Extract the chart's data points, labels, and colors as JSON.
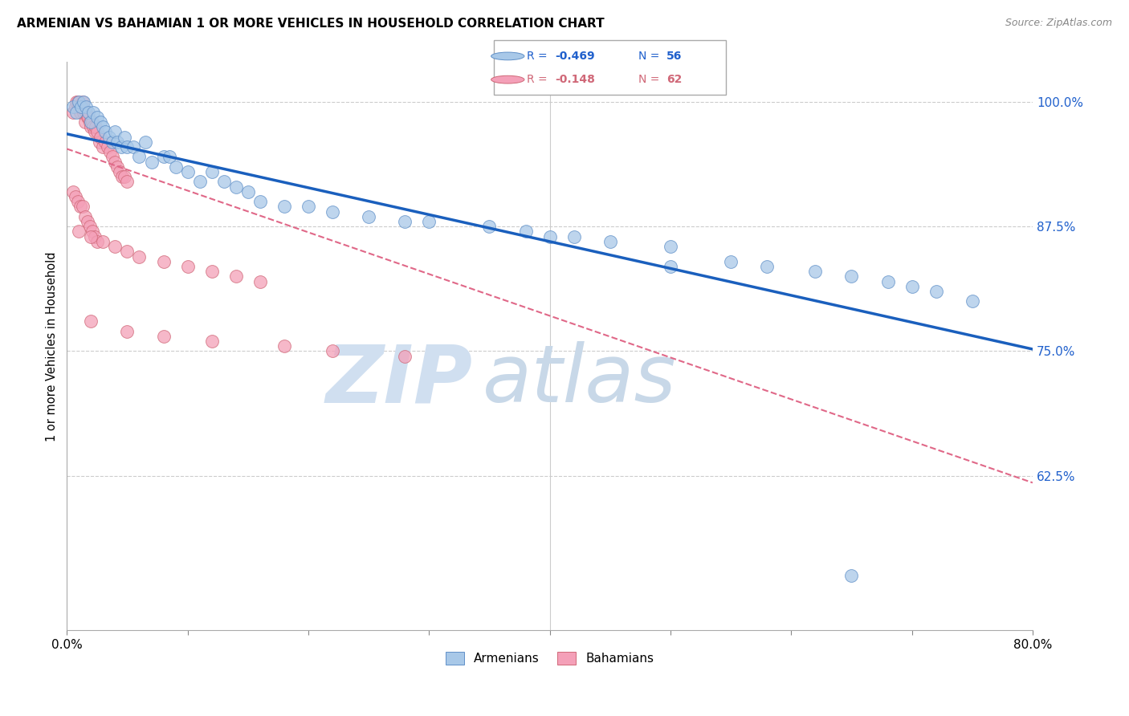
{
  "title": "ARMENIAN VS BAHAMIAN 1 OR MORE VEHICLES IN HOUSEHOLD CORRELATION CHART",
  "source": "Source: ZipAtlas.com",
  "ylabel": "1 or more Vehicles in Household",
  "ytick_labels": [
    "100.0%",
    "87.5%",
    "75.0%",
    "62.5%"
  ],
  "ytick_values": [
    1.0,
    0.875,
    0.75,
    0.625
  ],
  "xlim": [
    0.0,
    0.8
  ],
  "ylim": [
    0.47,
    1.04
  ],
  "legend_armenians": "Armenians",
  "legend_bahamians": "Bahamians",
  "legend_r_armenian": "-0.469",
  "legend_n_armenian": "56",
  "legend_r_bahamian": "-0.148",
  "legend_n_bahamian": "62",
  "color_armenian": "#a8c8e8",
  "color_bahamian": "#f4a0b8",
  "color_trendline_armenian": "#1a5fbd",
  "color_trendline_bahamian": "#e06888",
  "watermark_zip": "ZIP",
  "watermark_atlas": "atlas",
  "watermark_color": "#c8d8e8",
  "trendline_armenian_x0": 0.0,
  "trendline_armenian_y0": 0.968,
  "trendline_armenian_x1": 0.8,
  "trendline_armenian_y1": 0.752,
  "trendline_bahamian_x0": 0.0,
  "trendline_bahamian_y0": 0.953,
  "trendline_bahamian_x1": 0.8,
  "trendline_bahamian_y1": 0.618,
  "armenian_x": [
    0.005,
    0.008,
    0.01,
    0.012,
    0.014,
    0.016,
    0.018,
    0.02,
    0.022,
    0.025,
    0.028,
    0.03,
    0.032,
    0.035,
    0.038,
    0.04,
    0.042,
    0.045,
    0.048,
    0.05,
    0.055,
    0.06,
    0.065,
    0.07,
    0.08,
    0.085,
    0.09,
    0.1,
    0.11,
    0.12,
    0.13,
    0.14,
    0.15,
    0.16,
    0.18,
    0.2,
    0.22,
    0.25,
    0.28,
    0.3,
    0.35,
    0.38,
    0.4,
    0.42,
    0.45,
    0.5,
    0.55,
    0.58,
    0.62,
    0.65,
    0.68,
    0.7,
    0.72,
    0.75,
    0.5,
    0.65
  ],
  "armenian_y": [
    0.995,
    0.99,
    1.0,
    0.995,
    1.0,
    0.995,
    0.99,
    0.98,
    0.99,
    0.985,
    0.98,
    0.975,
    0.97,
    0.965,
    0.96,
    0.97,
    0.96,
    0.955,
    0.965,
    0.955,
    0.955,
    0.945,
    0.96,
    0.94,
    0.945,
    0.945,
    0.935,
    0.93,
    0.92,
    0.93,
    0.92,
    0.915,
    0.91,
    0.9,
    0.895,
    0.895,
    0.89,
    0.885,
    0.88,
    0.88,
    0.875,
    0.87,
    0.865,
    0.865,
    0.86,
    0.855,
    0.84,
    0.835,
    0.83,
    0.825,
    0.82,
    0.815,
    0.81,
    0.8,
    0.835,
    0.525
  ],
  "bahamian_x": [
    0.005,
    0.007,
    0.008,
    0.009,
    0.01,
    0.011,
    0.012,
    0.013,
    0.014,
    0.015,
    0.016,
    0.017,
    0.018,
    0.019,
    0.02,
    0.021,
    0.022,
    0.023,
    0.024,
    0.025,
    0.027,
    0.028,
    0.03,
    0.032,
    0.034,
    0.036,
    0.038,
    0.04,
    0.042,
    0.044,
    0.046,
    0.048,
    0.05,
    0.005,
    0.007,
    0.009,
    0.011,
    0.013,
    0.015,
    0.017,
    0.019,
    0.021,
    0.023,
    0.025,
    0.01,
    0.02,
    0.03,
    0.04,
    0.05,
    0.06,
    0.08,
    0.1,
    0.12,
    0.14,
    0.16,
    0.02,
    0.05,
    0.08,
    0.12,
    0.18,
    0.22,
    0.28
  ],
  "bahamian_y": [
    0.99,
    0.995,
    1.0,
    1.0,
    0.995,
    0.99,
    0.995,
    1.0,
    0.99,
    0.98,
    0.99,
    0.985,
    0.985,
    0.98,
    0.975,
    0.98,
    0.975,
    0.97,
    0.975,
    0.97,
    0.96,
    0.965,
    0.955,
    0.96,
    0.955,
    0.95,
    0.945,
    0.94,
    0.935,
    0.93,
    0.925,
    0.925,
    0.92,
    0.91,
    0.905,
    0.9,
    0.895,
    0.895,
    0.885,
    0.88,
    0.875,
    0.87,
    0.865,
    0.86,
    0.87,
    0.865,
    0.86,
    0.855,
    0.85,
    0.845,
    0.84,
    0.835,
    0.83,
    0.825,
    0.82,
    0.78,
    0.77,
    0.765,
    0.76,
    0.755,
    0.75,
    0.745
  ]
}
